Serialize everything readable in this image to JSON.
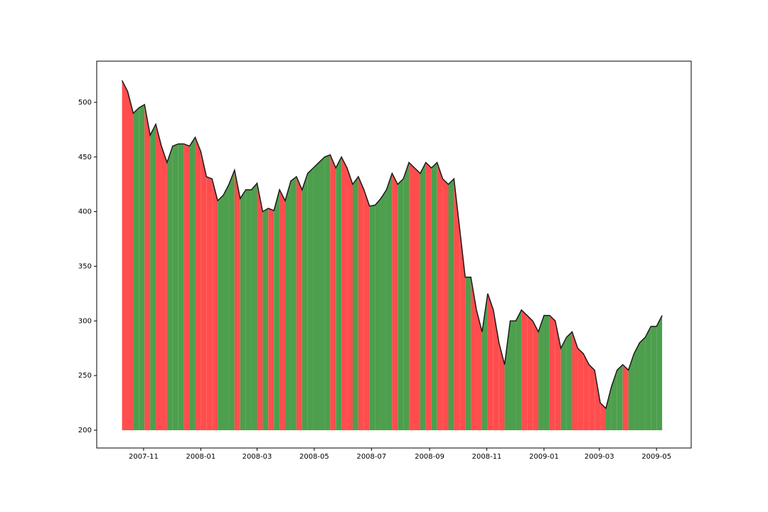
{
  "chart_data": {
    "type": "line_fill",
    "x": [
      13795,
      13801,
      13807,
      13813,
      13819,
      13825,
      13831,
      13837,
      13843,
      13849,
      13855,
      13861,
      13867,
      13873,
      13879,
      13885,
      13891,
      13897,
      13903,
      13909,
      13915,
      13921,
      13927,
      13933,
      13939,
      13945,
      13951,
      13957,
      13963,
      13969,
      13975,
      13981,
      13987,
      13993,
      13999,
      14005,
      14011,
      14017,
      14023,
      14029,
      14035,
      14041,
      14047,
      14053,
      14059,
      14065,
      14071,
      14077,
      14083,
      14089,
      14095,
      14101,
      14107,
      14113,
      14119,
      14125,
      14131,
      14137,
      14143,
      14149,
      14155,
      14161,
      14167,
      14173,
      14179,
      14185,
      14191,
      14197,
      14203,
      14209,
      14215,
      14221,
      14227,
      14233,
      14239,
      14245,
      14251,
      14257,
      14263,
      14269,
      14275,
      14281,
      14287,
      14293,
      14299,
      14305,
      14311,
      14317,
      14323,
      14329,
      14335,
      14341,
      14347,
      14353,
      14359,
      14365,
      14371
    ],
    "values": [
      520,
      510,
      490,
      495,
      498,
      470,
      480,
      460,
      445,
      460,
      462,
      462,
      460,
      468,
      455,
      432,
      430,
      410,
      415,
      425,
      438,
      412,
      420,
      420,
      426,
      400,
      403,
      401,
      420,
      410,
      428,
      432,
      420,
      435,
      440,
      445,
      450,
      452,
      440,
      450,
      440,
      425,
      432,
      420,
      405,
      406,
      412,
      420,
      435,
      425,
      430,
      445,
      440,
      435,
      445,
      440,
      445,
      430,
      425,
      430,
      385,
      340,
      340,
      310,
      290,
      325,
      310,
      280,
      260,
      300,
      300,
      310,
      305,
      300,
      290,
      305,
      305,
      300,
      275,
      285,
      290,
      275,
      270,
      260,
      255,
      225,
      220,
      240,
      255,
      260,
      255,
      270,
      280,
      285,
      295,
      295,
      305
    ],
    "baseline": 200,
    "line_color": "#1a1a1a",
    "rise_color": "#4d9f4d",
    "fall_color": "#ff4d4d",
    "xlim": [
      13768,
      14402
    ],
    "ylim": [
      183.7,
      537.7
    ],
    "yticks": [
      200,
      250,
      300,
      350,
      400,
      450,
      500
    ],
    "xticks": [
      {
        "value": 13818,
        "label": "2007-11"
      },
      {
        "value": 13879,
        "label": "2008-01"
      },
      {
        "value": 13939,
        "label": "2008-03"
      },
      {
        "value": 14000,
        "label": "2008-05"
      },
      {
        "value": 14061,
        "label": "2008-07"
      },
      {
        "value": 14123,
        "label": "2008-09"
      },
      {
        "value": 14184,
        "label": "2008-11"
      },
      {
        "value": 14245,
        "label": "2009-01"
      },
      {
        "value": 14304,
        "label": "2009-03"
      },
      {
        "value": 14365,
        "label": "2009-05"
      }
    ]
  }
}
